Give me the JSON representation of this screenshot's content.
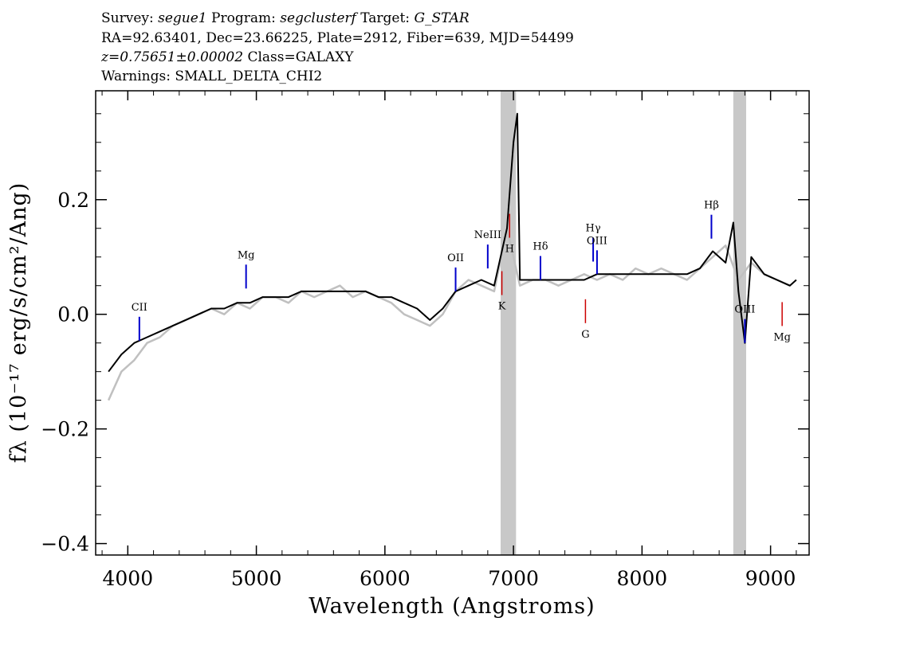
{
  "header": {
    "survey_label": "Survey:",
    "survey_value": "segue1",
    "program_label": "Program:",
    "program_value": "segclusterf",
    "target_label": "Target:",
    "target_value": "G_STAR",
    "coords_line": "RA=92.63401, Dec=23.66225, Plate=2912, Fiber=639, MJD=54499",
    "redshift_value": "z=0.75651±0.00002",
    "class_text": "Class=GALAXY",
    "warnings_line": "Warnings: SMALL_DELTA_CHI2"
  },
  "chart_data": {
    "type": "line",
    "xlabel": "Wavelength (Angstroms)",
    "ylabel": "fλ (10⁻¹⁷ erg/s/cm²/Ang)",
    "xlim": [
      3750,
      9300
    ],
    "ylim": [
      -0.42,
      0.39
    ],
    "x_ticks": [
      4000,
      5000,
      6000,
      7000,
      8000,
      9000
    ],
    "y_ticks": [
      -0.4,
      -0.2,
      0.0,
      0.2
    ],
    "y_tick_labels": [
      "−0.4",
      "−0.2",
      "0.0",
      "0.2"
    ],
    "masked_regions": [
      [
        6900,
        7020
      ],
      [
        8710,
        8810
      ]
    ],
    "colors": {
      "data": "#c0c0c0",
      "model": "#000000",
      "mask": "#c8c8c8",
      "emission": "#0000cc",
      "absorption": "#cc0000"
    },
    "series": [
      {
        "name": "data",
        "x": [
          3850,
          3950,
          4050,
          4150,
          4250,
          4350,
          4450,
          4550,
          4650,
          4750,
          4850,
          4950,
          5050,
          5150,
          5250,
          5350,
          5450,
          5550,
          5650,
          5750,
          5850,
          5950,
          6050,
          6150,
          6250,
          6350,
          6450,
          6550,
          6650,
          6750,
          6850,
          6950,
          7050,
          7150,
          7250,
          7350,
          7450,
          7550,
          7650,
          7750,
          7850,
          7950,
          8050,
          8150,
          8250,
          8350,
          8450,
          8550,
          8650,
          8750,
          8850,
          8950,
          9050,
          9150
        ],
        "y": [
          -0.15,
          -0.1,
          -0.08,
          -0.05,
          -0.04,
          -0.02,
          -0.01,
          0.0,
          0.01,
          0.0,
          0.02,
          0.01,
          0.03,
          0.03,
          0.02,
          0.04,
          0.03,
          0.04,
          0.05,
          0.03,
          0.04,
          0.03,
          0.02,
          0.0,
          -0.01,
          -0.02,
          0.0,
          0.04,
          0.06,
          0.05,
          0.04,
          0.15,
          0.05,
          0.06,
          0.06,
          0.05,
          0.06,
          0.07,
          0.06,
          0.07,
          0.06,
          0.08,
          0.07,
          0.08,
          0.07,
          0.06,
          0.08,
          0.1,
          0.12,
          0.06,
          0.09,
          0.07,
          0.06,
          0.05
        ]
      },
      {
        "name": "model",
        "x": [
          3850,
          3950,
          4050,
          4150,
          4250,
          4350,
          4450,
          4550,
          4650,
          4750,
          4850,
          4950,
          5050,
          5150,
          5250,
          5350,
          5450,
          5550,
          5650,
          5750,
          5850,
          5950,
          6050,
          6150,
          6250,
          6350,
          6450,
          6550,
          6650,
          6750,
          6850,
          6950,
          7000,
          7030,
          7050,
          7150,
          7250,
          7350,
          7450,
          7550,
          7650,
          7750,
          7850,
          7950,
          8050,
          8150,
          8250,
          8350,
          8450,
          8550,
          8650,
          8710,
          8750,
          8800,
          8850,
          8950,
          9050,
          9150,
          9200
        ],
        "y": [
          -0.1,
          -0.07,
          -0.05,
          -0.04,
          -0.03,
          -0.02,
          -0.01,
          0.0,
          0.01,
          0.01,
          0.02,
          0.02,
          0.03,
          0.03,
          0.03,
          0.04,
          0.04,
          0.04,
          0.04,
          0.04,
          0.04,
          0.03,
          0.03,
          0.02,
          0.01,
          -0.01,
          0.01,
          0.04,
          0.05,
          0.06,
          0.05,
          0.15,
          0.3,
          0.35,
          0.06,
          0.06,
          0.06,
          0.06,
          0.06,
          0.06,
          0.07,
          0.07,
          0.07,
          0.07,
          0.07,
          0.07,
          0.07,
          0.07,
          0.08,
          0.11,
          0.09,
          0.16,
          0.04,
          -0.05,
          0.1,
          0.07,
          0.06,
          0.05,
          0.06
        ]
      }
    ],
    "annotations": [
      {
        "label": "CII",
        "x": 4090,
        "type": "emission"
      },
      {
        "label": "Mg",
        "x": 4920,
        "type": "emission"
      },
      {
        "label": "OII",
        "x": 6550,
        "type": "emission"
      },
      {
        "label": "NeIII",
        "x": 6800,
        "type": "emission"
      },
      {
        "label": "Hδ",
        "x": 7210,
        "type": "emission"
      },
      {
        "label": "Hγ",
        "x": 7620,
        "type": "emission"
      },
      {
        "label": "OIII",
        "x": 7650,
        "type": "emission"
      },
      {
        "label": "Hβ",
        "x": 8540,
        "type": "emission"
      },
      {
        "label": "OIII",
        "x": 8800,
        "type": "emission"
      },
      {
        "label": "K",
        "x": 6910,
        "type": "absorption"
      },
      {
        "label": "H",
        "x": 6970,
        "type": "absorption"
      },
      {
        "label": "G",
        "x": 7560,
        "type": "absorption"
      },
      {
        "label": "Mg",
        "x": 9090,
        "type": "absorption"
      }
    ]
  }
}
